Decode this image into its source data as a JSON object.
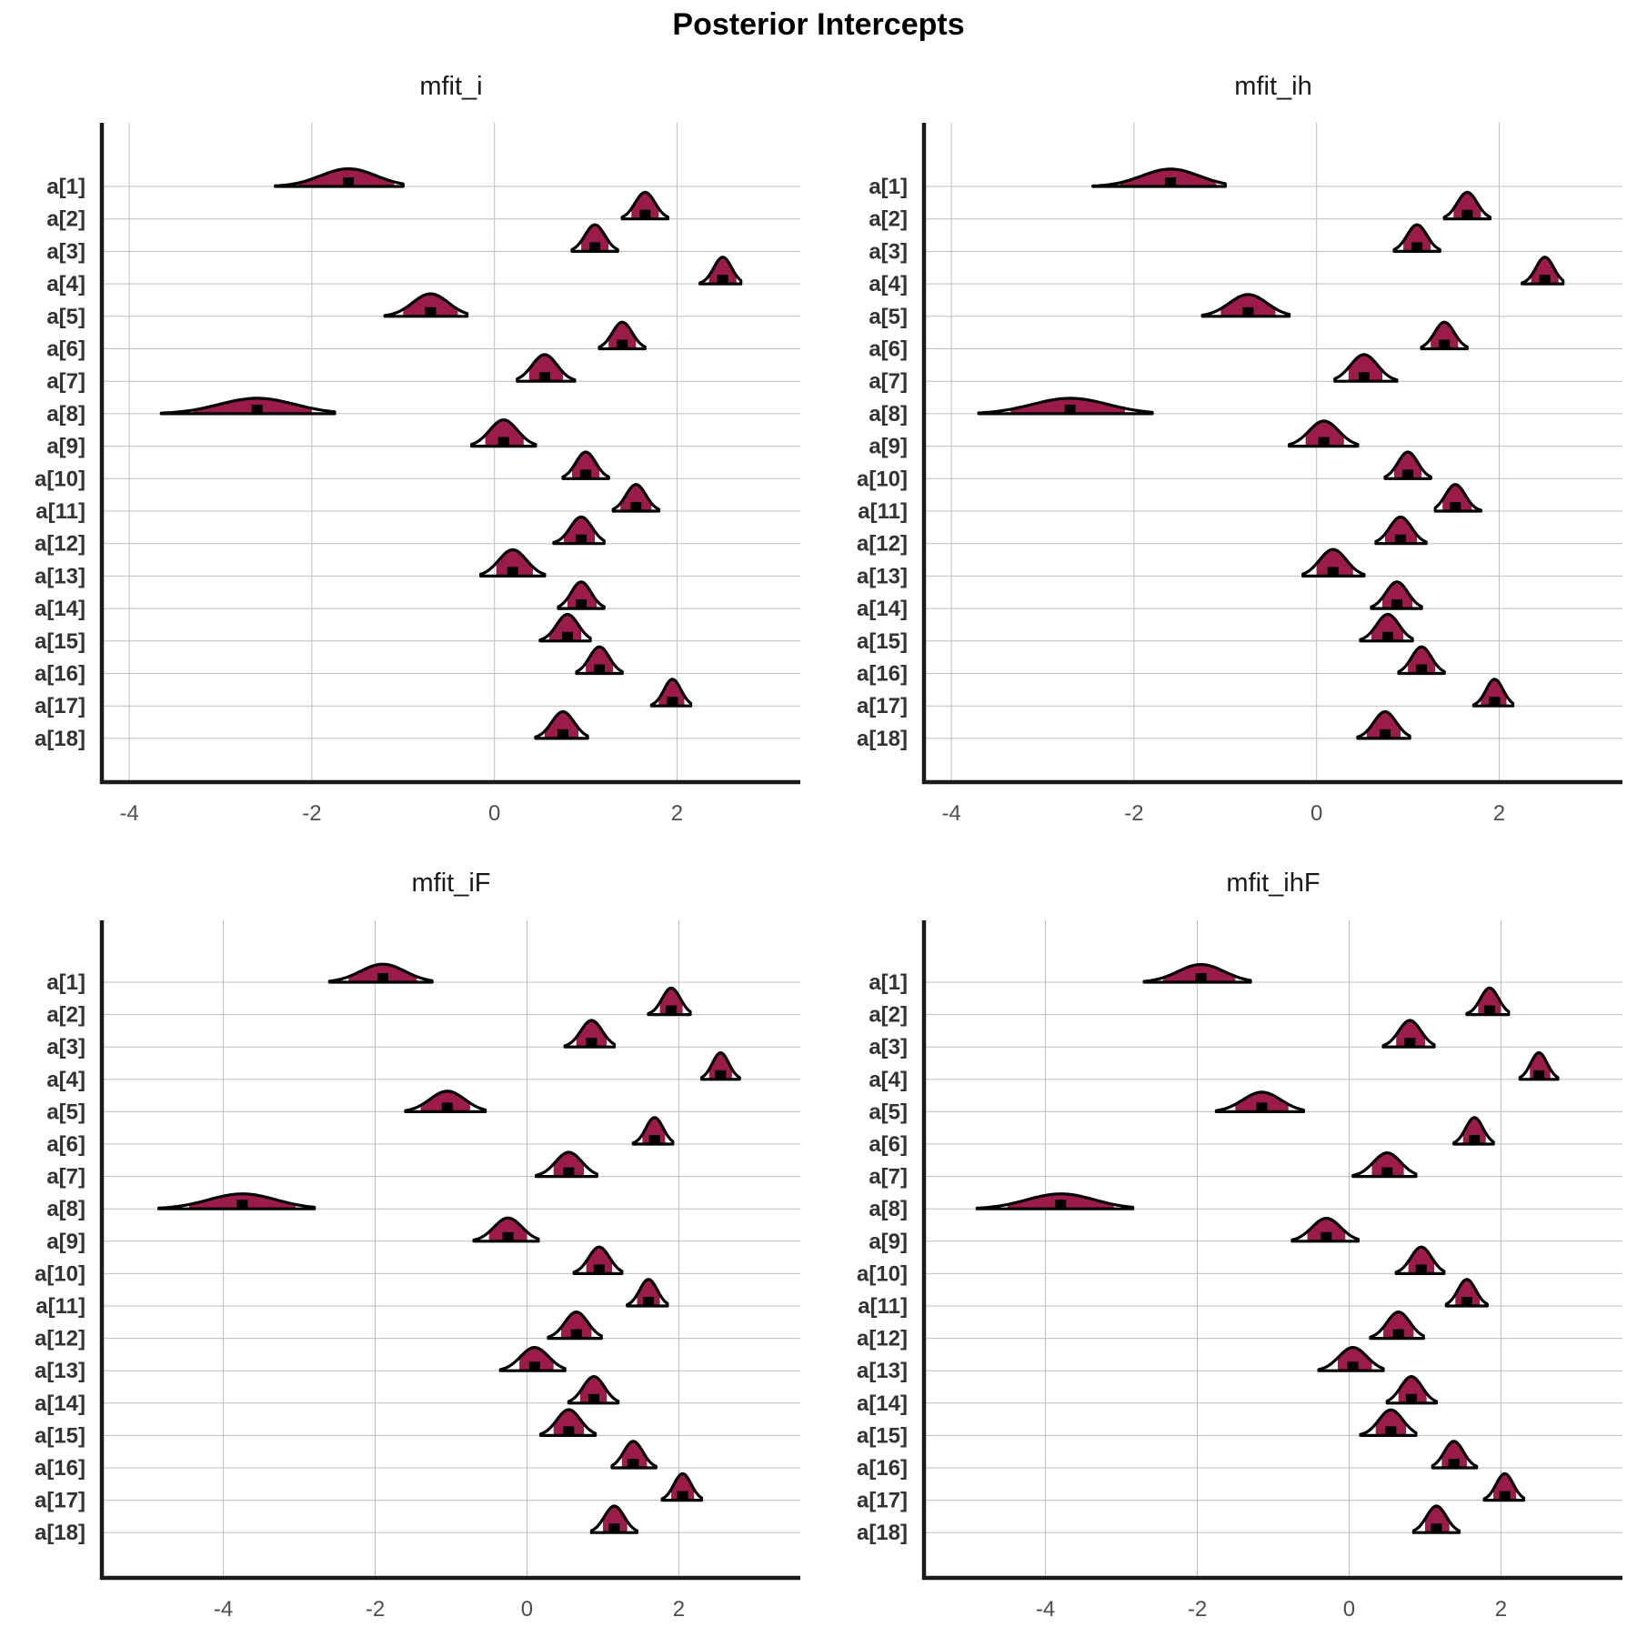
{
  "title": "Posterior Intercepts",
  "colors": {
    "interval_fill": "#9b1b4b",
    "outline": "#000000",
    "grid": "#bdbdbd",
    "axis": "#1a1a1a"
  },
  "chart_data": [
    {
      "type": "density-ridge",
      "title": "mfit_i",
      "categories": [
        "a[1]",
        "a[2]",
        "a[3]",
        "a[4]",
        "a[5]",
        "a[6]",
        "a[7]",
        "a[8]",
        "a[9]",
        "a[10]",
        "a[11]",
        "a[12]",
        "a[13]",
        "a[14]",
        "a[15]",
        "a[16]",
        "a[17]",
        "a[18]"
      ],
      "xlim": [
        -4.3,
        3.35
      ],
      "xticks": [
        -4,
        -2,
        0,
        2
      ],
      "xtick_labels": [
        "-4",
        "-2",
        "0",
        "2"
      ],
      "grid": true,
      "series": [
        {
          "median": -1.6,
          "inner": [
            -2.15,
            -1.1
          ],
          "outer": [
            -2.4,
            -1.0
          ]
        },
        {
          "median": 1.65,
          "inner": [
            1.5,
            1.8
          ],
          "outer": [
            1.4,
            1.9
          ]
        },
        {
          "median": 1.1,
          "inner": [
            0.95,
            1.25
          ],
          "outer": [
            0.85,
            1.35
          ]
        },
        {
          "median": 2.5,
          "inner": [
            2.35,
            2.65
          ],
          "outer": [
            2.25,
            2.7
          ]
        },
        {
          "median": -0.7,
          "inner": [
            -1.0,
            -0.4
          ],
          "outer": [
            -1.2,
            -0.3
          ]
        },
        {
          "median": 1.4,
          "inner": [
            1.25,
            1.55
          ],
          "outer": [
            1.15,
            1.65
          ]
        },
        {
          "median": 0.55,
          "inner": [
            0.38,
            0.75
          ],
          "outer": [
            0.25,
            0.88
          ]
        },
        {
          "median": -2.6,
          "inner": [
            -3.3,
            -2.0
          ],
          "outer": [
            -3.65,
            -1.75
          ]
        },
        {
          "median": 0.1,
          "inner": [
            -0.1,
            0.32
          ],
          "outer": [
            -0.25,
            0.45
          ]
        },
        {
          "median": 1.0,
          "inner": [
            0.85,
            1.15
          ],
          "outer": [
            0.75,
            1.25
          ]
        },
        {
          "median": 1.55,
          "inner": [
            1.38,
            1.72
          ],
          "outer": [
            1.3,
            1.8
          ]
        },
        {
          "median": 0.95,
          "inner": [
            0.76,
            1.1
          ],
          "outer": [
            0.65,
            1.2
          ]
        },
        {
          "median": 0.2,
          "inner": [
            0.02,
            0.42
          ],
          "outer": [
            -0.15,
            0.55
          ]
        },
        {
          "median": 0.95,
          "inner": [
            0.8,
            1.12
          ],
          "outer": [
            0.7,
            1.2
          ]
        },
        {
          "median": 0.8,
          "inner": [
            0.6,
            0.95
          ],
          "outer": [
            0.5,
            1.05
          ]
        },
        {
          "median": 1.15,
          "inner": [
            1.0,
            1.3
          ],
          "outer": [
            0.9,
            1.4
          ]
        },
        {
          "median": 1.95,
          "inner": [
            1.8,
            2.08
          ],
          "outer": [
            1.72,
            2.15
          ]
        },
        {
          "median": 0.75,
          "inner": [
            0.55,
            0.92
          ],
          "outer": [
            0.45,
            1.02
          ]
        }
      ]
    },
    {
      "type": "density-ridge",
      "title": "mfit_ih",
      "categories": [
        "a[1]",
        "a[2]",
        "a[3]",
        "a[4]",
        "a[5]",
        "a[6]",
        "a[7]",
        "a[8]",
        "a[9]",
        "a[10]",
        "a[11]",
        "a[12]",
        "a[13]",
        "a[14]",
        "a[15]",
        "a[16]",
        "a[17]",
        "a[18]"
      ],
      "xlim": [
        -4.3,
        3.35
      ],
      "xticks": [
        -4,
        -2,
        0,
        2
      ],
      "xtick_labels": [
        "-4",
        "-2",
        "0",
        "2"
      ],
      "grid": true,
      "series": [
        {
          "median": -1.6,
          "inner": [
            -2.15,
            -1.1
          ],
          "outer": [
            -2.45,
            -1.0
          ]
        },
        {
          "median": 1.65,
          "inner": [
            1.5,
            1.8
          ],
          "outer": [
            1.4,
            1.9
          ]
        },
        {
          "median": 1.1,
          "inner": [
            0.95,
            1.25
          ],
          "outer": [
            0.85,
            1.35
          ]
        },
        {
          "median": 2.5,
          "inner": [
            2.35,
            2.65
          ],
          "outer": [
            2.25,
            2.7
          ]
        },
        {
          "median": -0.75,
          "inner": [
            -1.05,
            -0.45
          ],
          "outer": [
            -1.25,
            -0.3
          ]
        },
        {
          "median": 1.4,
          "inner": [
            1.25,
            1.55
          ],
          "outer": [
            1.15,
            1.65
          ]
        },
        {
          "median": 0.52,
          "inner": [
            0.35,
            0.72
          ],
          "outer": [
            0.2,
            0.88
          ]
        },
        {
          "median": -2.7,
          "inner": [
            -3.35,
            -2.1
          ],
          "outer": [
            -3.7,
            -1.8
          ]
        },
        {
          "median": 0.08,
          "inner": [
            -0.12,
            0.3
          ],
          "outer": [
            -0.3,
            0.45
          ]
        },
        {
          "median": 1.0,
          "inner": [
            0.85,
            1.15
          ],
          "outer": [
            0.75,
            1.25
          ]
        },
        {
          "median": 1.52,
          "inner": [
            1.38,
            1.7
          ],
          "outer": [
            1.3,
            1.8
          ]
        },
        {
          "median": 0.92,
          "inner": [
            0.75,
            1.1
          ],
          "outer": [
            0.65,
            1.2
          ]
        },
        {
          "median": 0.18,
          "inner": [
            0.0,
            0.4
          ],
          "outer": [
            -0.15,
            0.52
          ]
        },
        {
          "median": 0.88,
          "inner": [
            0.72,
            1.05
          ],
          "outer": [
            0.6,
            1.15
          ]
        },
        {
          "median": 0.78,
          "inner": [
            0.6,
            0.95
          ],
          "outer": [
            0.48,
            1.05
          ]
        },
        {
          "median": 1.15,
          "inner": [
            1.0,
            1.3
          ],
          "outer": [
            0.9,
            1.4
          ]
        },
        {
          "median": 1.95,
          "inner": [
            1.8,
            2.08
          ],
          "outer": [
            1.72,
            2.15
          ]
        },
        {
          "median": 0.75,
          "inner": [
            0.55,
            0.92
          ],
          "outer": [
            0.45,
            1.02
          ]
        }
      ]
    },
    {
      "type": "density-ridge",
      "title": "mfit_iF",
      "categories": [
        "a[1]",
        "a[2]",
        "a[3]",
        "a[4]",
        "a[5]",
        "a[6]",
        "a[7]",
        "a[8]",
        "a[9]",
        "a[10]",
        "a[11]",
        "a[12]",
        "a[13]",
        "a[14]",
        "a[15]",
        "a[16]",
        "a[17]",
        "a[18]"
      ],
      "xlim": [
        -5.6,
        3.6
      ],
      "xticks": [
        -4,
        -2,
        0,
        2
      ],
      "xtick_labels": [
        "-4",
        "-2",
        "0",
        "2"
      ],
      "grid": true,
      "series": [
        {
          "median": -1.9,
          "inner": [
            -2.35,
            -1.45
          ],
          "outer": [
            -2.6,
            -1.25
          ]
        },
        {
          "median": 1.9,
          "inner": [
            1.75,
            2.05
          ],
          "outer": [
            1.6,
            2.15
          ]
        },
        {
          "median": 0.85,
          "inner": [
            0.65,
            1.05
          ],
          "outer": [
            0.5,
            1.15
          ]
        },
        {
          "median": 2.55,
          "inner": [
            2.4,
            2.7
          ],
          "outer": [
            2.3,
            2.8
          ]
        },
        {
          "median": -1.05,
          "inner": [
            -1.4,
            -0.75
          ],
          "outer": [
            -1.6,
            -0.55
          ]
        },
        {
          "median": 1.68,
          "inner": [
            1.52,
            1.82
          ],
          "outer": [
            1.4,
            1.92
          ]
        },
        {
          "median": 0.55,
          "inner": [
            0.35,
            0.75
          ],
          "outer": [
            0.12,
            0.92
          ]
        },
        {
          "median": -3.75,
          "inner": [
            -4.45,
            -3.05
          ],
          "outer": [
            -4.85,
            -2.8
          ]
        },
        {
          "median": -0.25,
          "inner": [
            -0.5,
            0.0
          ],
          "outer": [
            -0.7,
            0.15
          ]
        },
        {
          "median": 0.95,
          "inner": [
            0.78,
            1.12
          ],
          "outer": [
            0.62,
            1.25
          ]
        },
        {
          "median": 1.6,
          "inner": [
            1.45,
            1.75
          ],
          "outer": [
            1.32,
            1.85
          ]
        },
        {
          "median": 0.65,
          "inner": [
            0.45,
            0.85
          ],
          "outer": [
            0.28,
            0.98
          ]
        },
        {
          "median": 0.1,
          "inner": [
            -0.1,
            0.35
          ],
          "outer": [
            -0.35,
            0.5
          ]
        },
        {
          "median": 0.88,
          "inner": [
            0.7,
            1.05
          ],
          "outer": [
            0.55,
            1.2
          ]
        },
        {
          "median": 0.55,
          "inner": [
            0.35,
            0.75
          ],
          "outer": [
            0.18,
            0.9
          ]
        },
        {
          "median": 1.4,
          "inner": [
            1.25,
            1.58
          ],
          "outer": [
            1.12,
            1.7
          ]
        },
        {
          "median": 2.05,
          "inner": [
            1.9,
            2.2
          ],
          "outer": [
            1.78,
            2.3
          ]
        },
        {
          "median": 1.15,
          "inner": [
            1.0,
            1.32
          ],
          "outer": [
            0.85,
            1.45
          ]
        }
      ]
    },
    {
      "type": "density-ridge",
      "title": "mfit_ihF",
      "categories": [
        "a[1]",
        "a[2]",
        "a[3]",
        "a[4]",
        "a[5]",
        "a[6]",
        "a[7]",
        "a[8]",
        "a[9]",
        "a[10]",
        "a[11]",
        "a[12]",
        "a[13]",
        "a[14]",
        "a[15]",
        "a[16]",
        "a[17]",
        "a[18]"
      ],
      "xlim": [
        -5.6,
        3.6
      ],
      "xticks": [
        -4,
        -2,
        0,
        2
      ],
      "xtick_labels": [
        "-4",
        "-2",
        "0",
        "2"
      ],
      "grid": true,
      "series": [
        {
          "median": -1.95,
          "inner": [
            -2.45,
            -1.5
          ],
          "outer": [
            -2.7,
            -1.3
          ]
        },
        {
          "median": 1.85,
          "inner": [
            1.7,
            2.0
          ],
          "outer": [
            1.55,
            2.1
          ]
        },
        {
          "median": 0.8,
          "inner": [
            0.62,
            1.0
          ],
          "outer": [
            0.45,
            1.12
          ]
        },
        {
          "median": 2.5,
          "inner": [
            2.38,
            2.65
          ],
          "outer": [
            2.25,
            2.75
          ]
        },
        {
          "median": -1.15,
          "inner": [
            -1.5,
            -0.8
          ],
          "outer": [
            -1.75,
            -0.6
          ]
        },
        {
          "median": 1.65,
          "inner": [
            1.5,
            1.8
          ],
          "outer": [
            1.38,
            1.9
          ]
        },
        {
          "median": 0.5,
          "inner": [
            0.3,
            0.72
          ],
          "outer": [
            0.05,
            0.88
          ]
        },
        {
          "median": -3.8,
          "inner": [
            -4.5,
            -3.1
          ],
          "outer": [
            -4.9,
            -2.85
          ]
        },
        {
          "median": -0.3,
          "inner": [
            -0.55,
            -0.05
          ],
          "outer": [
            -0.75,
            0.12
          ]
        },
        {
          "median": 0.95,
          "inner": [
            0.78,
            1.12
          ],
          "outer": [
            0.62,
            1.25
          ]
        },
        {
          "median": 1.55,
          "inner": [
            1.4,
            1.72
          ],
          "outer": [
            1.28,
            1.82
          ]
        },
        {
          "median": 0.65,
          "inner": [
            0.45,
            0.85
          ],
          "outer": [
            0.28,
            0.98
          ]
        },
        {
          "median": 0.05,
          "inner": [
            -0.15,
            0.3
          ],
          "outer": [
            -0.4,
            0.45
          ]
        },
        {
          "median": 0.82,
          "inner": [
            0.65,
            1.02
          ],
          "outer": [
            0.5,
            1.15
          ]
        },
        {
          "median": 0.55,
          "inner": [
            0.35,
            0.75
          ],
          "outer": [
            0.15,
            0.88
          ]
        },
        {
          "median": 1.38,
          "inner": [
            1.22,
            1.55
          ],
          "outer": [
            1.1,
            1.68
          ]
        },
        {
          "median": 2.05,
          "inner": [
            1.9,
            2.2
          ],
          "outer": [
            1.78,
            2.3
          ]
        },
        {
          "median": 1.15,
          "inner": [
            1.0,
            1.32
          ],
          "outer": [
            0.85,
            1.45
          ]
        }
      ]
    }
  ]
}
